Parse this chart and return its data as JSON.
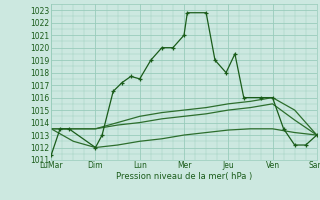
{
  "xlabel_bottom": "Pression niveau de la mer( hPa )",
  "x_tick_labels": [
    "LuMar",
    "Dim",
    "Lun",
    "Mer",
    "Jeu",
    "Ven",
    "Sam"
  ],
  "x_tick_positions": [
    0,
    2,
    4,
    6,
    8,
    10,
    12
  ],
  "ylim": [
    1011,
    1023.5
  ],
  "yticks": [
    1011,
    1012,
    1013,
    1014,
    1015,
    1016,
    1017,
    1018,
    1019,
    1020,
    1021,
    1022,
    1023
  ],
  "bg_color": "#cce8e0",
  "grid_color": "#99ccbb",
  "line_color_main": "#1a5c1a",
  "line_color_bands": "#2d6e2d",
  "series_main": {
    "x": [
      0.0,
      0.4,
      0.8,
      2.0,
      2.3,
      2.8,
      3.2,
      3.6,
      4.0,
      4.5,
      5.0,
      5.5,
      6.0,
      6.15,
      7.0,
      7.4,
      7.9,
      8.3,
      8.7,
      9.5,
      10.0,
      10.5,
      11.0,
      11.5,
      12.0
    ],
    "y": [
      1011.4,
      1013.5,
      1013.5,
      1012.0,
      1013.0,
      1016.5,
      1017.2,
      1017.7,
      1017.5,
      1019.0,
      1020.0,
      1020.0,
      1021.0,
      1022.8,
      1022.8,
      1019.0,
      1018.0,
      1019.5,
      1016.0,
      1016.0,
      1016.0,
      1013.5,
      1012.2,
      1012.2,
      1013.0
    ]
  },
  "series_upper": {
    "x": [
      0,
      1,
      2,
      3,
      4,
      5,
      6,
      7,
      8,
      9,
      10,
      11,
      12
    ],
    "y": [
      1013.5,
      1013.5,
      1013.5,
      1014.0,
      1014.5,
      1014.8,
      1015.0,
      1015.2,
      1015.5,
      1015.7,
      1016.0,
      1015.0,
      1013.0
    ]
  },
  "series_mid": {
    "x": [
      0,
      1,
      2,
      3,
      4,
      5,
      6,
      7,
      8,
      9,
      10,
      11,
      12
    ],
    "y": [
      1013.5,
      1013.5,
      1013.5,
      1013.8,
      1014.0,
      1014.3,
      1014.5,
      1014.7,
      1015.0,
      1015.2,
      1015.5,
      1014.2,
      1013.0
    ]
  },
  "series_lower": {
    "x": [
      0,
      1,
      2,
      3,
      4,
      5,
      6,
      7,
      8,
      9,
      10,
      11,
      12
    ],
    "y": [
      1013.5,
      1012.5,
      1012.0,
      1012.2,
      1012.5,
      1012.7,
      1013.0,
      1013.2,
      1013.4,
      1013.5,
      1013.5,
      1013.2,
      1013.0
    ]
  }
}
